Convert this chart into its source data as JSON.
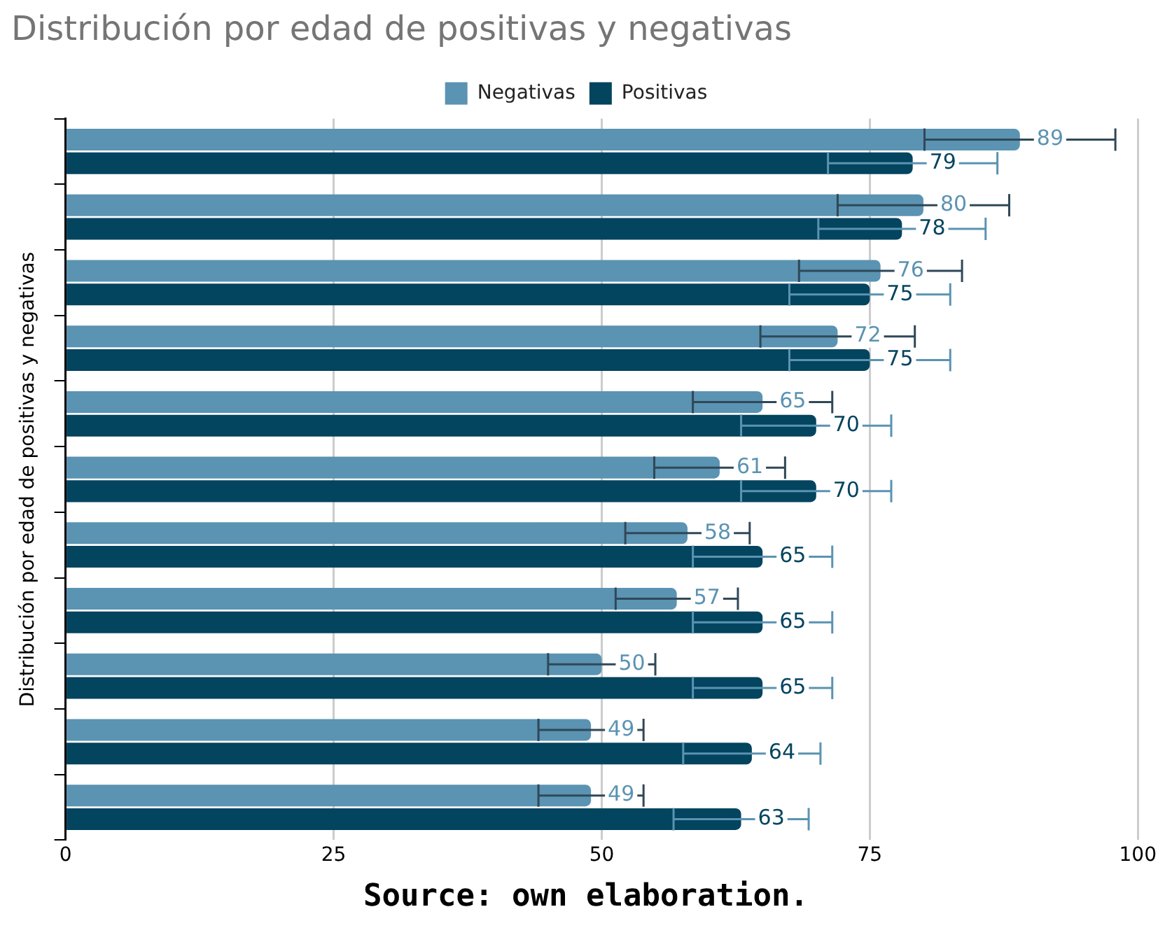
{
  "chart_data": {
    "type": "bar",
    "orientation": "horizontal",
    "title": "Distribución por edad de positivas y negativas",
    "ylabel": "Distribución por edad de positivas y negativas",
    "annotations": [
      "Source: own elaboration."
    ],
    "categories": [
      null,
      null,
      null,
      null,
      null,
      null,
      null,
      null,
      null,
      null,
      null
    ],
    "series": [
      {
        "name": "Negativas",
        "color": "#5b93b2",
        "values": [
          89,
          80,
          76,
          72,
          65,
          61,
          58,
          57,
          50,
          49,
          49
        ],
        "errors": [
          8.9,
          8,
          7.6,
          7.2,
          6.5,
          6.1,
          5.8,
          5.7,
          5,
          4.9,
          4.9
        ]
      },
      {
        "name": "Positivas",
        "color": "#03445f",
        "values": [
          79,
          78,
          75,
          75,
          70,
          70,
          65,
          65,
          65,
          64,
          63
        ],
        "errors": [
          7.9,
          7.8,
          7.5,
          7.5,
          7,
          7,
          6.5,
          6.5,
          6.5,
          6.4,
          6.3
        ]
      }
    ],
    "xlim": [
      0,
      100
    ],
    "xticks": [
      0,
      25,
      50,
      75,
      100
    ],
    "grid": "x",
    "legend": "top",
    "data_labels": true
  }
}
